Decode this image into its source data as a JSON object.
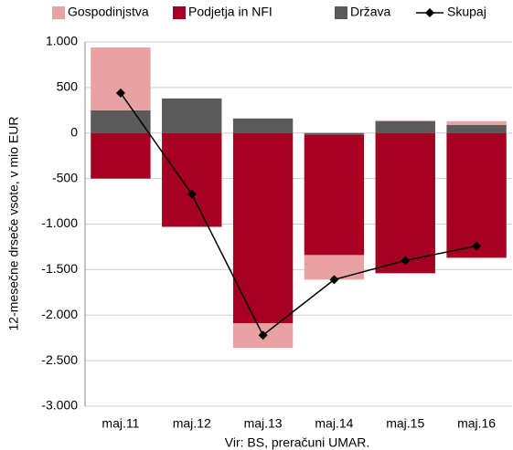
{
  "chart_data": {
    "type": "stacked-bar-line",
    "y_axis_label": "12-mesečne drseče vsote, v mio EUR",
    "source": "Vir: BS, preračuni UMAR.",
    "categories": [
      "maj.11",
      "maj.12",
      "maj.13",
      "maj.14",
      "maj.15",
      "maj.16"
    ],
    "series": [
      {
        "name": "Gospodinjstva",
        "color": "#e8a2a2",
        "kind": "bar",
        "values": [
          690,
          0,
          -270,
          -270,
          10,
          40
        ]
      },
      {
        "name": "Podjetja in NFI",
        "color": "#a50021",
        "kind": "bar",
        "values": [
          -500,
          -1030,
          -2090,
          -1320,
          -1540,
          -1370
        ]
      },
      {
        "name": "Država",
        "color": "#5a5a5a",
        "kind": "bar",
        "values": [
          250,
          380,
          160,
          -20,
          130,
          90
        ]
      },
      {
        "name": "Skupaj",
        "color": "#000000",
        "kind": "line",
        "values": [
          440,
          -670,
          -2220,
          -1610,
          -1400,
          -1240
        ]
      }
    ],
    "stack_order": [
      2,
      1,
      0
    ],
    "ylim": [
      -3000,
      1000
    ],
    "yticks": [
      {
        "value": -3000,
        "label": "-3.000"
      },
      {
        "value": -2500,
        "label": "-2.500"
      },
      {
        "value": -2000,
        "label": "-2.000"
      },
      {
        "value": -1500,
        "label": "-1.500"
      },
      {
        "value": -1000,
        "label": "-1.000"
      },
      -500,
      0,
      500,
      {
        "value": 1000,
        "label": "1.000"
      }
    ],
    "grid": true
  }
}
